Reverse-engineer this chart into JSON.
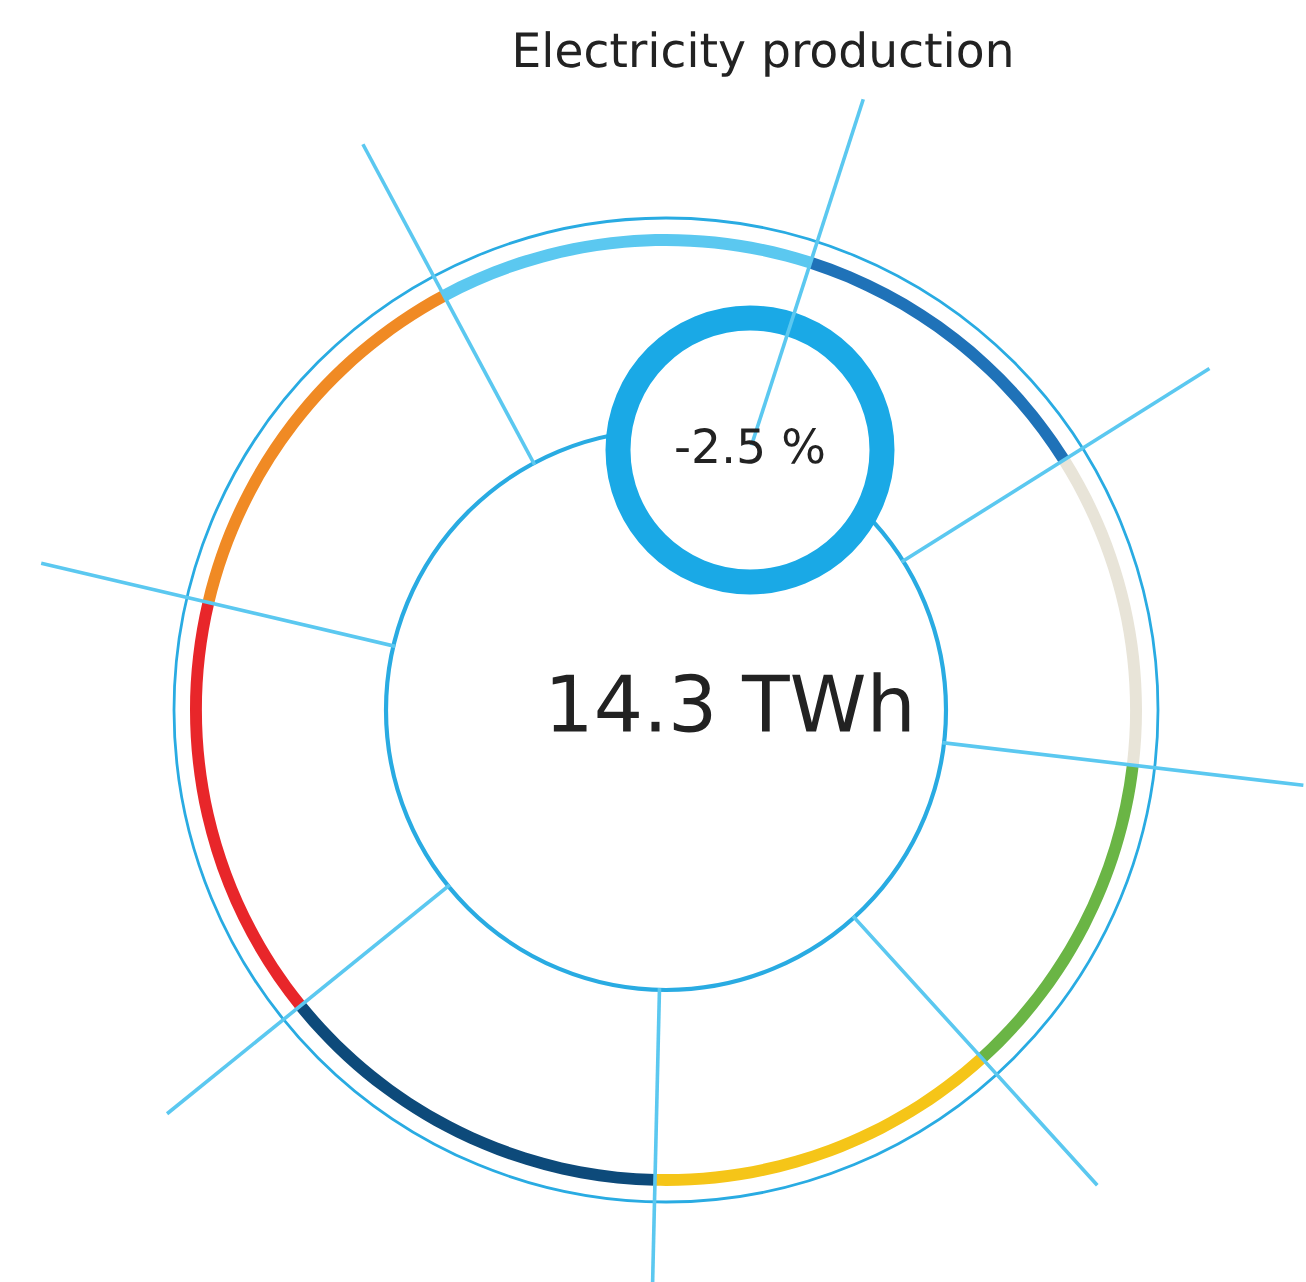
{
  "chart_data": {
    "type": "donut",
    "title": "Electricity production",
    "categories": [
      null,
      null,
      null,
      null,
      null,
      null,
      null,
      null
    ],
    "values": [
      11.1,
      10.8,
      11.4,
      12.1,
      13.8,
      14.5,
      13.5,
      12.8
    ],
    "colors": [
      "#1f72b8",
      "#e8e4d8",
      "#6ab545",
      "#f5c518",
      "#0d4a7a",
      "#e8262a",
      "#f08a24",
      "#5bc8f0"
    ],
    "annotations": [
      "-2.5 %",
      "14.3 TWh"
    ]
  }
}
